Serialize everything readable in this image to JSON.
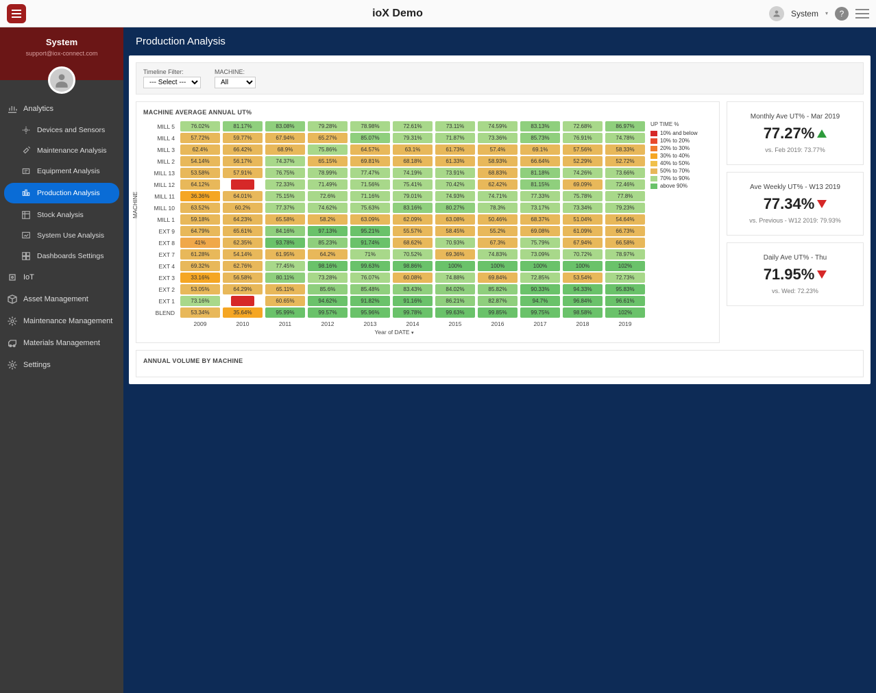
{
  "topbar": {
    "title": "ioX Demo",
    "user": "System"
  },
  "sidebar": {
    "user": "System",
    "email": "support@iox-connect.com",
    "groups": [
      {
        "label": "Analytics",
        "icon": "chart",
        "children": [
          {
            "label": "Devices and Sensors",
            "icon": "device"
          },
          {
            "label": "Maintenance Analysis",
            "icon": "maint"
          },
          {
            "label": "Equipment Analysis",
            "icon": "equip"
          },
          {
            "label": "Production Analysis",
            "icon": "prod",
            "active": true
          },
          {
            "label": "Stock Analysis",
            "icon": "stock"
          },
          {
            "label": "System Use Analysis",
            "icon": "sysuse"
          },
          {
            "label": "Dashboards Settings",
            "icon": "dashset"
          }
        ]
      },
      {
        "label": "IoT",
        "icon": "iot"
      },
      {
        "label": "Asset Management",
        "icon": "asset"
      },
      {
        "label": "Maintenance Management",
        "icon": "maintmgmt"
      },
      {
        "label": "Materials Management",
        "icon": "materials"
      },
      {
        "label": "Settings",
        "icon": "settings"
      }
    ]
  },
  "page": {
    "title": "Production Analysis"
  },
  "filters": {
    "timeline_label": "Timeline Filter:",
    "timeline_selected": "--- Select ---",
    "machine_label": "MACHINE:",
    "machine_selected": "All"
  },
  "heatmap": {
    "title": "MACHINE AVERAGE ANNUAL UT%",
    "xaxis_label": "Year of DATE",
    "yaxis_label": "MACHINE",
    "years": [
      "2009",
      "2010",
      "2011",
      "2012",
      "2013",
      "2014",
      "2015",
      "2016",
      "2017",
      "2018",
      "2019"
    ],
    "machines": [
      "MILL 5",
      "MILL 4",
      "MILL 3",
      "MILL 2",
      "MILL 13",
      "MILL 12",
      "MILL 11",
      "MILL 10",
      "MILL 1",
      "EXT 9",
      "EXT 8",
      "EXT 7",
      "EXT 4",
      "EXT 3",
      "EXT 2",
      "EXT 1",
      "BLEND"
    ],
    "values": [
      [
        76.02,
        81.17,
        83.08,
        79.28,
        78.98,
        72.61,
        73.11,
        74.59,
        83.13,
        72.68,
        86.97
      ],
      [
        57.72,
        59.77,
        67.94,
        65.27,
        85.07,
        79.31,
        71.87,
        73.36,
        85.73,
        76.91,
        74.78
      ],
      [
        62.4,
        66.42,
        68.9,
        75.86,
        64.57,
        63.1,
        61.73,
        57.4,
        69.1,
        57.56,
        58.33
      ],
      [
        54.14,
        56.17,
        74.37,
        65.15,
        69.81,
        68.18,
        61.33,
        58.93,
        66.64,
        52.29,
        52.72
      ],
      [
        53.58,
        57.91,
        76.75,
        78.99,
        77.47,
        74.19,
        73.91,
        68.83,
        81.18,
        74.26,
        73.66
      ],
      [
        64.12,
        null,
        72.33,
        71.49,
        71.56,
        75.41,
        70.42,
        62.42,
        81.15,
        69.09,
        72.46
      ],
      [
        36.36,
        64.01,
        75.15,
        72.6,
        71.16,
        79.01,
        74.93,
        74.71,
        77.33,
        75.78,
        77.8
      ],
      [
        63.52,
        60.2,
        77.37,
        74.62,
        75.63,
        83.16,
        80.27,
        78.3,
        73.17,
        73.34,
        79.23
      ],
      [
        59.18,
        64.23,
        65.58,
        58.2,
        63.09,
        62.09,
        63.08,
        50.46,
        68.37,
        51.04,
        54.64
      ],
      [
        64.79,
        65.61,
        84.16,
        97.13,
        95.21,
        55.57,
        58.45,
        55.2,
        69.08,
        61.09,
        66.73
      ],
      [
        41.0,
        62.35,
        93.78,
        85.23,
        91.74,
        68.62,
        70.93,
        67.3,
        75.79,
        67.94,
        66.58
      ],
      [
        61.28,
        54.14,
        61.95,
        64.2,
        71.0,
        70.52,
        69.36,
        74.83,
        73.09,
        70.72,
        78.97
      ],
      [
        69.32,
        62.76,
        77.45,
        98.16,
        99.63,
        98.86,
        100.0,
        100.0,
        100.0,
        100.0,
        102.0
      ],
      [
        33.16,
        56.58,
        80.11,
        73.28,
        76.07,
        60.08,
        74.88,
        69.84,
        72.85,
        53.54,
        72.73
      ],
      [
        53.05,
        64.29,
        65.11,
        85.6,
        85.48,
        83.43,
        84.02,
        85.82,
        90.33,
        94.33,
        95.83
      ],
      [
        73.16,
        null,
        60.65,
        94.62,
        91.82,
        91.16,
        86.21,
        82.87,
        94.7,
        96.84,
        96.61
      ],
      [
        53.34,
        35.64,
        95.99,
        99.57,
        95.96,
        99.78,
        99.63,
        99.85,
        99.75,
        98.58,
        102.0
      ]
    ],
    "legend": {
      "title": "UP TIME %",
      "buckets": [
        {
          "label": "10% and below",
          "color": "#d62828"
        },
        {
          "label": "10% to 20%",
          "color": "#e84a2e"
        },
        {
          "label": "20% to 30%",
          "color": "#f07b2e"
        },
        {
          "label": "30% to 40%",
          "color": "#f5a623"
        },
        {
          "label": "40% to 50%",
          "color": "#f0c04a"
        },
        {
          "label": "50% to 70%",
          "color": "#e8b85a"
        },
        {
          "label": "70% to 90%",
          "color": "#a8d88a"
        },
        {
          "label": "above 90%",
          "color": "#6ac26a"
        }
      ]
    },
    "colors": {
      "null": "#d62828",
      "lt40": "#f5a623",
      "b40_50": "#f0a84a",
      "b50_60": "#e8b85a",
      "b60_70": "#e8b85a",
      "b70_80": "#a8d88a",
      "b80_90": "#8fcf7d",
      "gt90": "#6ac26a"
    }
  },
  "bottom_panel": {
    "title": "ANNUAL VOLUME BY MACHINE"
  },
  "kpis": [
    {
      "title": "Monthly Ave UT% - Mar 2019",
      "value": "77.27%",
      "trend": "up",
      "sub": "vs. Feb 2019: 73.77%"
    },
    {
      "title": "Ave Weekly UT% - W13 2019",
      "value": "77.34%",
      "trend": "down",
      "sub": "vs. Previous - W12 2019: 79.93%"
    },
    {
      "title": "Daily Ave UT% - Thu",
      "value": "71.95%",
      "trend": "down",
      "sub": "vs. Wed: 72.23%"
    }
  ]
}
